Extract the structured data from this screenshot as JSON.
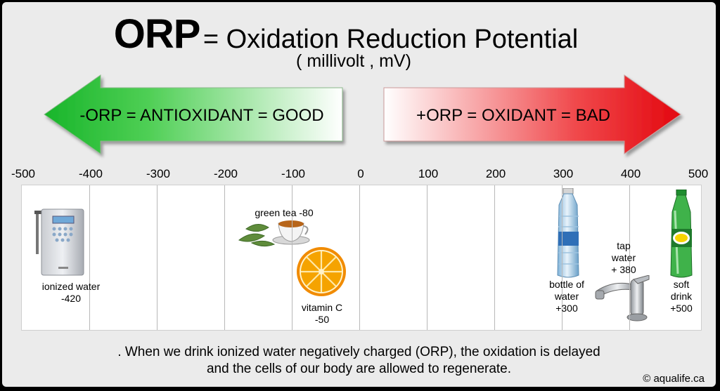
{
  "title": {
    "abbr": "ORP",
    "rest": "= Oxidation Reduction Potential",
    "unit": "( millivolt , mV)"
  },
  "arrows": {
    "left_text": "-ORP = ANTIOXIDANT = GOOD",
    "right_text": "+ORP = OXIDANT = BAD",
    "left_color": "#2ec63a",
    "right_color": "#e8151c"
  },
  "chart_data": {
    "type": "scatter",
    "xlim": [
      -500,
      500
    ],
    "ticks": [
      "-500",
      "-400",
      "-300",
      "-200",
      "-100",
      "0",
      "100",
      "200",
      "300",
      "400",
      "500"
    ],
    "grid": true,
    "items": [
      {
        "label": "ionized water\n-420",
        "x": -420
      },
      {
        "label": "green tea -80",
        "x": -80
      },
      {
        "label": "vitamin C\n-50",
        "x": -50
      },
      {
        "label": "bottle of\nwater\n+300",
        "x": 300
      },
      {
        "label": "tap\nwater\n+ 380",
        "x": 380
      },
      {
        "label": "soft\ndrink\n+500",
        "x": 500
      }
    ]
  },
  "icons": [
    "water-ionizer-icon",
    "green-tea-icon",
    "orange-slice-icon",
    "water-bottle-icon",
    "faucet-icon",
    "soda-bottle-icon"
  ],
  "footer": {
    "line1": ". When we drink ionized water negatively charged (ORP),  the oxidation is delayed",
    "line2": "and the cells of our body are allowed to regenerate."
  },
  "copyright": "© aqualife.ca"
}
